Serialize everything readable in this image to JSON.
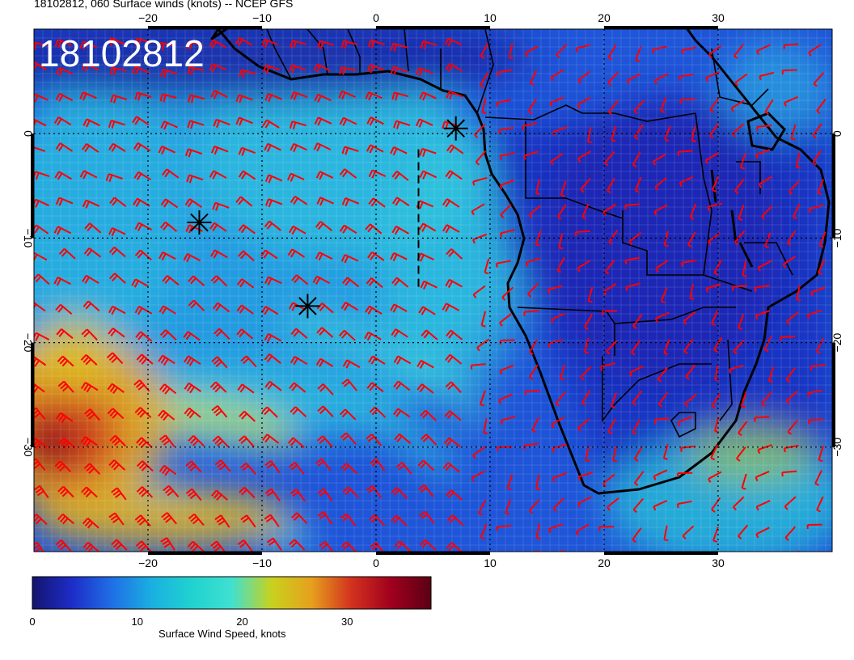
{
  "title": "18102812, 060 Surface winds (knots) -- NCEP GFS",
  "stamp": "18102812",
  "map": {
    "lon_range": [
      -30,
      40
    ],
    "lat_range": [
      -40,
      10
    ],
    "lon_ticks_top": [
      {
        "value": -20,
        "label": "−20"
      },
      {
        "value": -10,
        "label": "−10"
      },
      {
        "value": 0,
        "label": "0"
      },
      {
        "value": 10,
        "label": "10"
      },
      {
        "value": 20,
        "label": "20"
      },
      {
        "value": 30,
        "label": "30"
      }
    ],
    "lon_ticks_bottom": [
      {
        "value": -20,
        "label": "−20"
      },
      {
        "value": -10,
        "label": "−10"
      },
      {
        "value": 0,
        "label": "0"
      },
      {
        "value": 10,
        "label": "10"
      },
      {
        "value": 20,
        "label": "20"
      },
      {
        "value": 30,
        "label": "30"
      }
    ],
    "lat_ticks": [
      {
        "value": 0,
        "label": "0"
      },
      {
        "value": -10,
        "label": "−10"
      },
      {
        "value": -20,
        "label": "−20"
      },
      {
        "value": -30,
        "label": "−30"
      }
    ],
    "markers": [
      {
        "name": "star-marker-1",
        "lon": 7,
        "lat": 0.5
      },
      {
        "name": "star-marker-2",
        "lon": -15.5,
        "lat": -8.5
      },
      {
        "name": "star-marker-3",
        "lon": -6,
        "lat": -16.5
      }
    ],
    "dashed_track": {
      "lon": 5,
      "lat_start": -1.5,
      "lat_end": -15
    },
    "barb_color": "#ff0000",
    "coast_color": "#000000"
  },
  "colorbar": {
    "label": "Surface Wind Speed, knots",
    "range": [
      0,
      38
    ],
    "ticks": [
      {
        "value": 0,
        "label": "0"
      },
      {
        "value": 10,
        "label": "10"
      },
      {
        "value": 20,
        "label": "20"
      },
      {
        "value": 30,
        "label": "30"
      }
    ],
    "colors": [
      "#14146e",
      "#1e2dc8",
      "#1f6fe6",
      "#1ab0e0",
      "#20d2cf",
      "#40e0d0",
      "#c8d21e",
      "#e6a01e",
      "#d2321e",
      "#a0001e",
      "#5a0014"
    ]
  }
}
